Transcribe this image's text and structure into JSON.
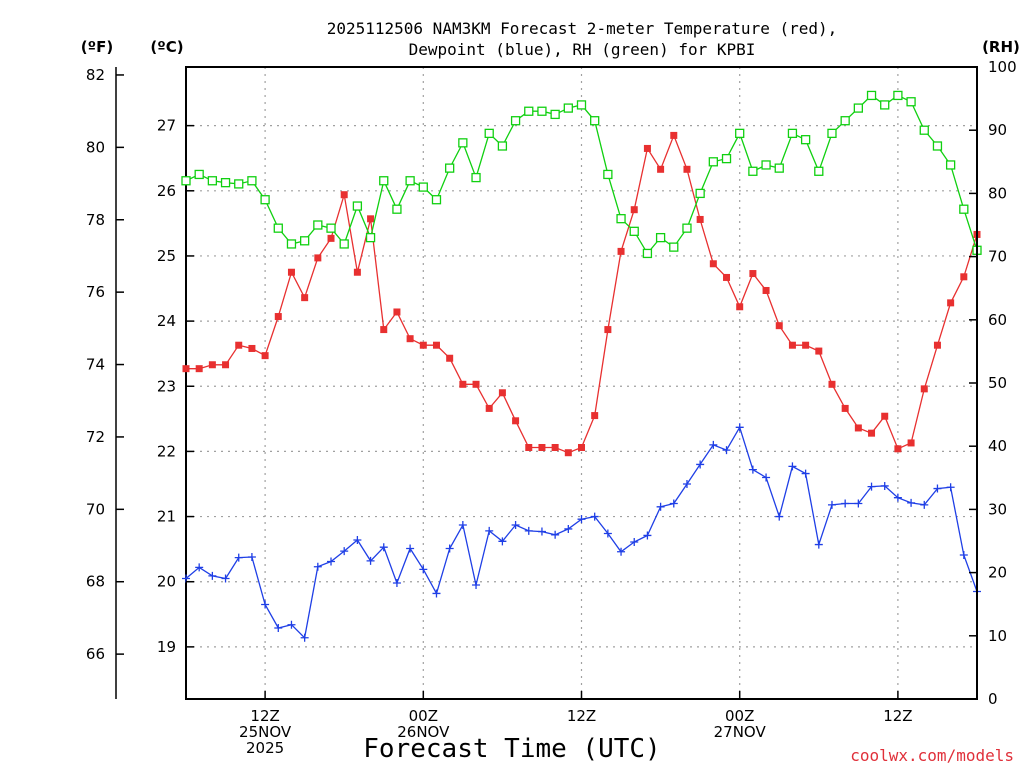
{
  "chart_data": {
    "type": "line",
    "title_line1": "2025112506 NAM3KM Forecast 2-meter Temperature (red),",
    "title_line2": "Dewpoint (blue), RH (green) for KPBI",
    "xlabel": "Forecast Time (UTC)",
    "credit": "coolwx.com/models",
    "axis_units": {
      "fahrenheit": "(ºF)",
      "celsius": "(ºC)",
      "rh": "(RH)"
    },
    "x_axis": {
      "start_hour": 6,
      "end_hour": 66,
      "step_hours": 1,
      "ticks": [
        {
          "hour": 12,
          "label1": "12Z",
          "label2": "25NOV",
          "label3": "2025"
        },
        {
          "hour": 24,
          "label1": "00Z",
          "label2": "26NOV",
          "label3": ""
        },
        {
          "hour": 36,
          "label1": "12Z",
          "label2": "",
          "label3": ""
        },
        {
          "hour": 48,
          "label1": "00Z",
          "label2": "27NOV",
          "label3": ""
        },
        {
          "hour": 60,
          "label1": "12Z",
          "label2": "",
          "label3": ""
        }
      ]
    },
    "y_celsius": {
      "min": 18.2,
      "max": 27.9,
      "ticks": [
        "19",
        "20",
        "21",
        "22",
        "23",
        "24",
        "25",
        "26",
        "27"
      ]
    },
    "y_fahrenheit": {
      "ticks": [
        "66",
        "68",
        "70",
        "72",
        "74",
        "76",
        "78",
        "80",
        "82"
      ]
    },
    "y_rh": {
      "min": 0,
      "max": 100,
      "ticks": [
        "0",
        "10",
        "20",
        "30",
        "40",
        "50",
        "60",
        "70",
        "80",
        "90",
        "100"
      ]
    },
    "colors": {
      "temperature": "#e83030",
      "dewpoint": "#1f3fe6",
      "rh": "#10d010",
      "grid": "#a0a0a0"
    },
    "series": [
      {
        "name": "Temperature (°C)",
        "key": "temperature",
        "values": [
          23.27,
          23.27,
          23.33,
          23.33,
          23.63,
          23.58,
          23.47,
          24.07,
          24.75,
          24.36,
          24.97,
          25.27,
          25.94,
          24.75,
          25.57,
          23.87,
          24.14,
          23.73,
          23.63,
          23.63,
          23.43,
          23.03,
          23.03,
          22.66,
          22.9,
          22.47,
          22.06,
          22.06,
          22.06,
          21.98,
          22.06,
          22.55,
          23.87,
          25.07,
          25.71,
          26.65,
          26.33,
          26.85,
          26.33,
          25.56,
          24.88,
          24.67,
          24.22,
          24.73,
          24.47,
          23.93,
          23.63,
          23.63,
          23.54,
          23.03,
          22.66,
          22.36,
          22.28,
          22.54,
          22.04,
          22.13,
          22.96,
          23.63,
          24.28,
          24.68,
          25.33
        ]
      },
      {
        "name": "Dewpoint (°C)",
        "key": "dewpoint",
        "values": [
          20.05,
          20.22,
          20.09,
          20.05,
          20.37,
          20.38,
          19.65,
          19.29,
          19.34,
          19.14,
          20.23,
          20.31,
          20.47,
          20.64,
          20.32,
          20.53,
          19.98,
          20.51,
          20.19,
          19.82,
          20.51,
          20.87,
          19.95,
          20.78,
          20.62,
          20.87,
          20.78,
          20.77,
          20.72,
          20.81,
          20.96,
          21.0,
          20.74,
          20.46,
          20.61,
          20.71,
          21.15,
          21.2,
          21.5,
          21.8,
          22.1,
          22.02,
          22.37,
          21.72,
          21.6,
          21.0,
          21.77,
          21.66,
          20.57,
          21.18,
          21.2,
          21.2,
          21.46,
          21.47,
          21.29,
          21.21,
          21.18,
          21.43,
          21.45,
          20.41,
          19.85
        ]
      },
      {
        "name": "RH (%)",
        "key": "rh",
        "values": [
          82.0,
          83.0,
          82.0,
          81.7,
          81.5,
          82.0,
          79.0,
          74.5,
          72.0,
          72.5,
          75.0,
          74.5,
          72.0,
          78.0,
          73.0,
          82.0,
          77.5,
          82.0,
          81.0,
          79.0,
          84.0,
          88.0,
          82.5,
          89.5,
          87.5,
          91.5,
          93.0,
          93.0,
          92.5,
          93.5,
          94.0,
          91.5,
          83.0,
          76.0,
          74.0,
          70.5,
          73.0,
          71.5,
          74.5,
          80.0,
          85.0,
          85.5,
          89.5,
          83.5,
          84.5,
          84.0,
          89.5,
          88.5,
          83.5,
          89.5,
          91.5,
          93.5,
          95.5,
          94.0,
          95.5,
          94.5,
          90.0,
          87.5,
          84.5,
          77.5,
          71.0
        ]
      }
    ]
  }
}
